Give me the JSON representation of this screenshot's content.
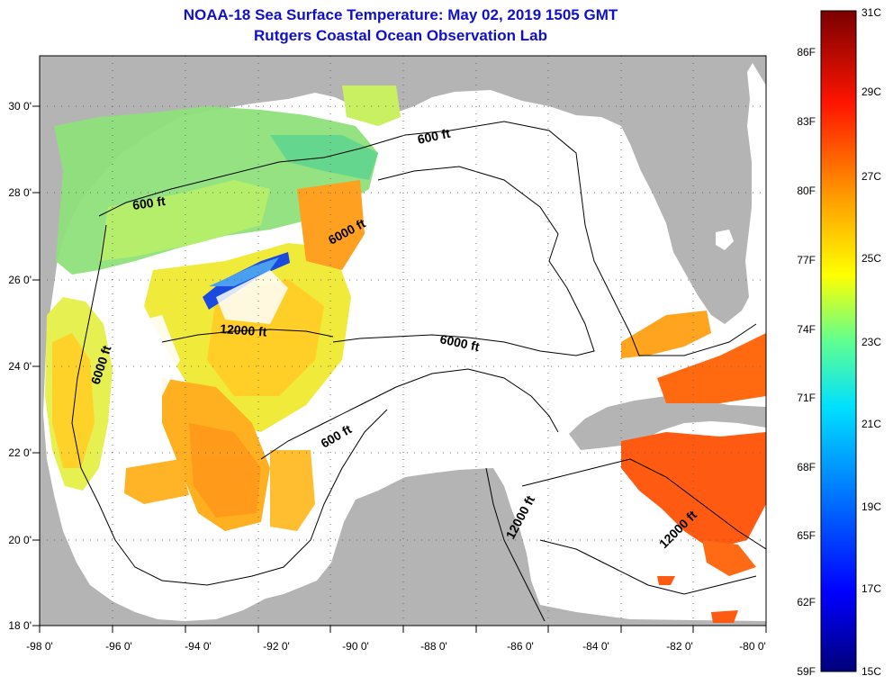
{
  "header": {
    "title": "NOAA-18 Sea Surface Temperature:  May 02, 2019 1505 GMT",
    "subtitle": "Rutgers Coastal Ocean Observation Lab"
  },
  "map": {
    "lon_labels": [
      "-98 0'",
      "-96 0'",
      "-94 0'",
      "-92 0'",
      "-90 0'",
      "-88 0'",
      "-86 0'",
      "-84 0'",
      "-82 0'",
      "-80 0'"
    ],
    "lat_labels": [
      "30 0'",
      "28 0'",
      "26 0'",
      "24 0'",
      "22 0'",
      "20 0'",
      "18 0'"
    ],
    "contour_labels": [
      "600 ft",
      "600 ft",
      "600 ft",
      "6000 ft",
      "6000 ft",
      "6000 ft",
      "12000 ft",
      "12000 ft",
      "12000 ft"
    ],
    "land_color": "#b4b4b4",
    "ocean_color": "#ffffff"
  },
  "colorbar": {
    "fahrenheit_labels": [
      "86F",
      "83F",
      "80F",
      "77F",
      "74F",
      "71F",
      "68F",
      "65F",
      "62F",
      "59F"
    ],
    "celsius_labels": [
      "31C",
      "29C",
      "27C",
      "25C",
      "23C",
      "21C",
      "19C",
      "17C",
      "15C"
    ],
    "colors": [
      "#800000",
      "#ff0000",
      "#ff8000",
      "#ffff00",
      "#80ff80",
      "#00ffff",
      "#0080ff",
      "#0000ff",
      "#000080"
    ]
  }
}
